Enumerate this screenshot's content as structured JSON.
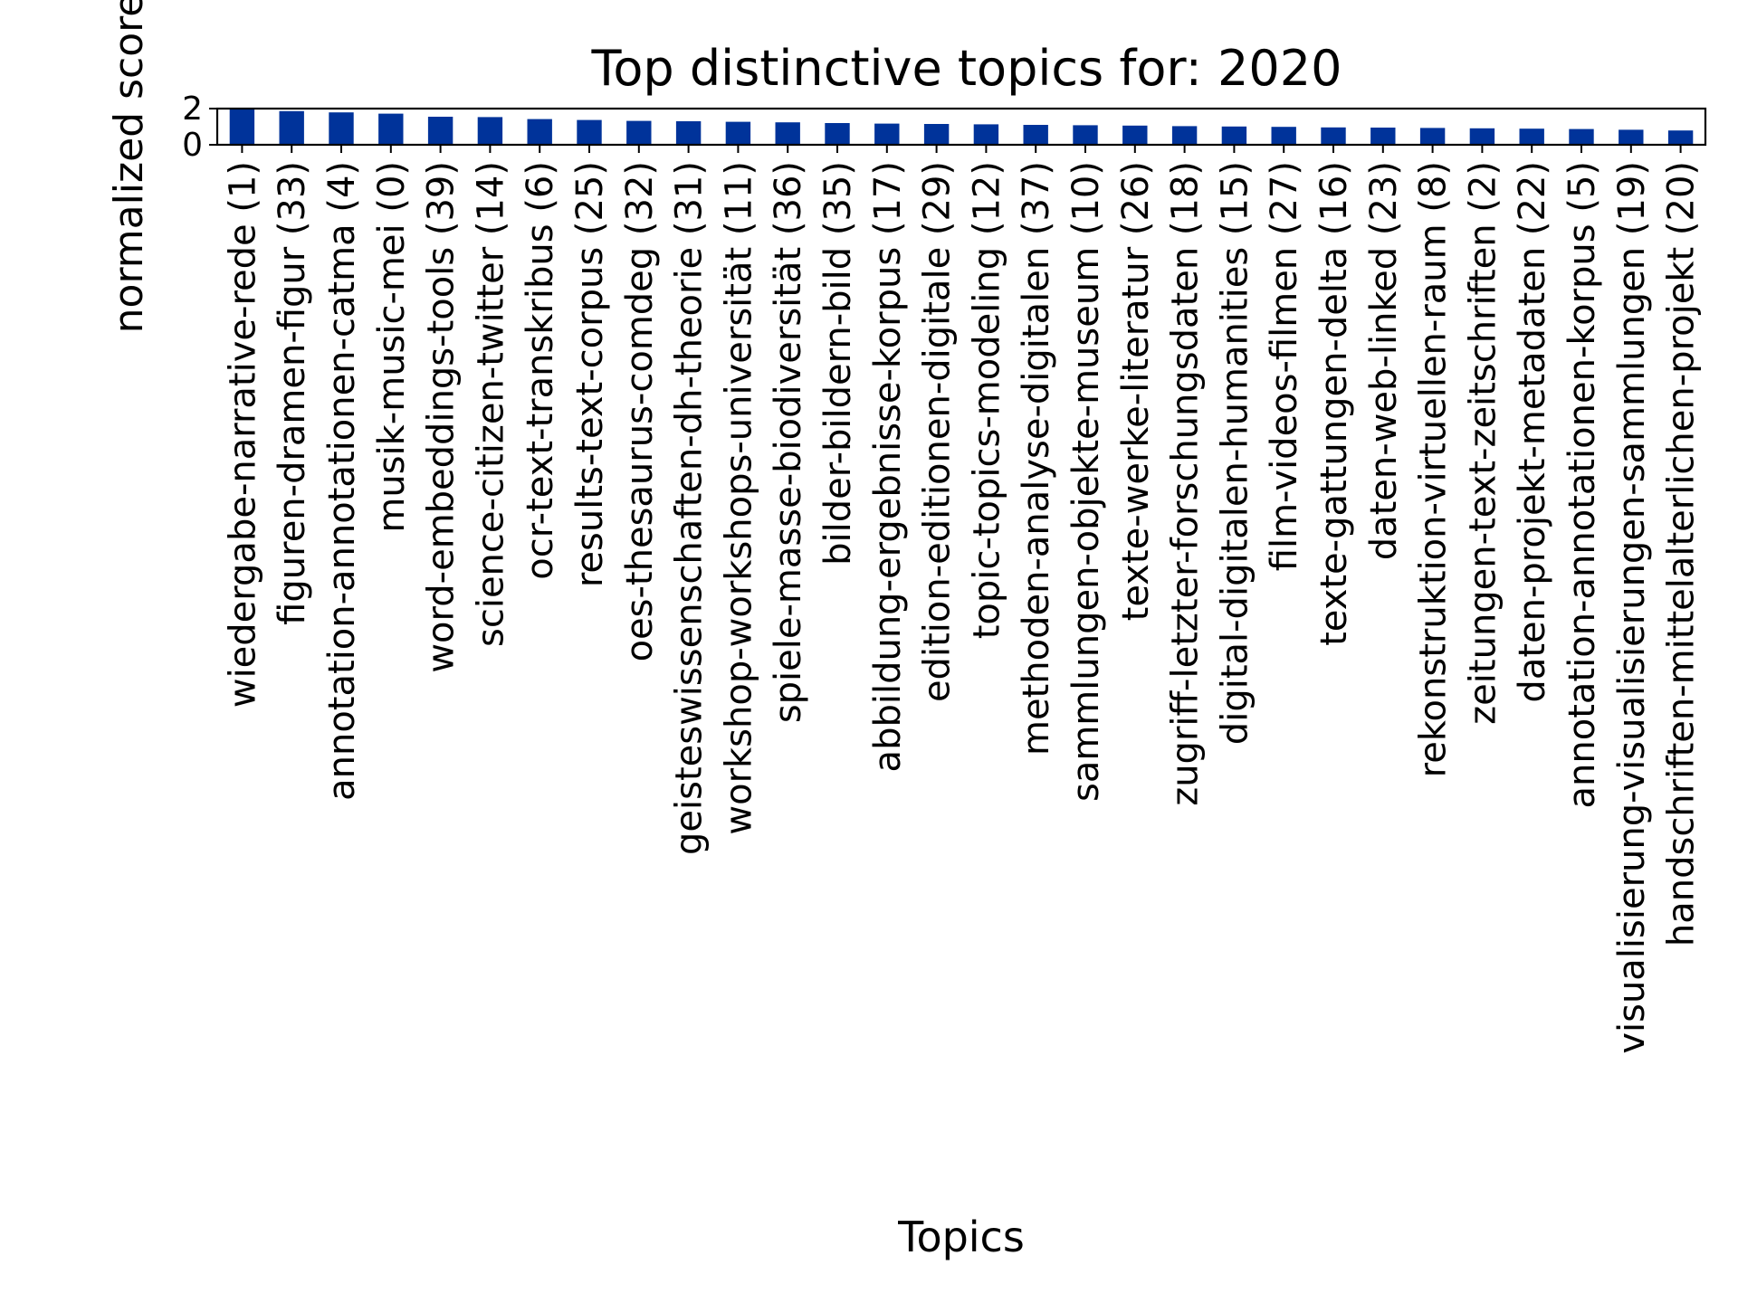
{
  "chart_data": {
    "type": "bar",
    "title": "Top distinctive topics for: 2020",
    "xlabel": "Topics",
    "ylabel": "normalized score",
    "ylim": [
      0,
      2.0
    ],
    "yticks": [
      0,
      2
    ],
    "grid": false,
    "legend": "none",
    "bar_color": "#00339a",
    "categories": [
      "wiedergabe-narrative-rede (1)",
      "figuren-dramen-figur (33)",
      "annotation-annotationen-catma (4)",
      "musik-music-mei (0)",
      "word-embeddings-tools (39)",
      "science-citizen-twitter (14)",
      "ocr-text-transkribus (6)",
      "results-text-corpus (25)",
      "oes-thesaurus-comdeg (32)",
      "geisteswissenschaften-dh-theorie (31)",
      "workshop-workshops-universität (11)",
      "spiele-masse-biodiversität (36)",
      "bilder-bildern-bild (35)",
      "abbildung-ergebnisse-korpus (17)",
      "edition-editionen-digitale (29)",
      "topic-topics-modeling (12)",
      "methoden-analyse-digitalen (37)",
      "sammlungen-objekte-museum (10)",
      "texte-werke-literatur (26)",
      "zugriff-letzter-forschungsdaten (18)",
      "digital-digitalen-humanities (15)",
      "film-videos-filmen (27)",
      "texte-gattungen-delta (16)",
      "daten-web-linked (23)",
      "rekonstruktion-virtuellen-raum (8)",
      "zeitungen-text-zeitschriften (2)",
      "daten-projekt-metadaten (22)",
      "annotation-annotationen-korpus (5)",
      "visualisierung-visualisierungen-sammlungen (19)",
      "handschriften-mittelalterlichen-projekt (20)"
    ],
    "values": [
      1.98,
      1.86,
      1.79,
      1.72,
      1.55,
      1.53,
      1.42,
      1.37,
      1.32,
      1.3,
      1.27,
      1.24,
      1.2,
      1.17,
      1.15,
      1.13,
      1.1,
      1.08,
      1.06,
      1.03,
      1.01,
      0.99,
      0.96,
      0.95,
      0.93,
      0.91,
      0.89,
      0.87,
      0.83,
      0.79
    ]
  }
}
